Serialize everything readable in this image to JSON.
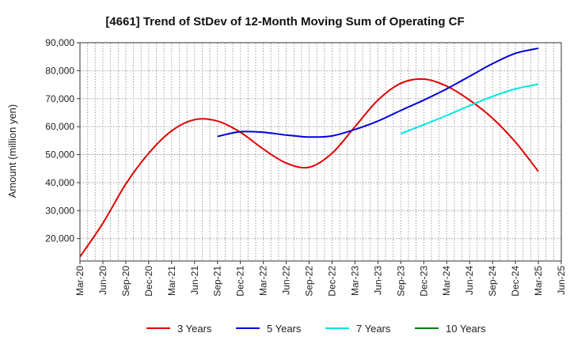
{
  "chart_data": {
    "type": "line",
    "title": "[4661]  Trend of StDev of 12-Month Moving Sum of Operating CF",
    "xlabel": "",
    "ylabel": "Amount (million yen)",
    "ylim": [
      12000,
      90000
    ],
    "yticks": [
      20000,
      30000,
      40000,
      50000,
      60000,
      70000,
      80000,
      90000
    ],
    "ytick_labels": [
      "20,000",
      "30,000",
      "40,000",
      "50,000",
      "60,000",
      "70,000",
      "80,000",
      "90,000"
    ],
    "xlim": [
      0,
      21
    ],
    "xtick_labels": [
      "Mar-20",
      "Jun-20",
      "Sep-20",
      "Dec-20",
      "Mar-21",
      "Jun-21",
      "Sep-21",
      "Dec-21",
      "Mar-22",
      "Jun-22",
      "Sep-22",
      "Dec-22",
      "Mar-23",
      "Jun-23",
      "Sep-23",
      "Dec-23",
      "Mar-24",
      "Jun-24",
      "Sep-24",
      "Dec-24",
      "Mar-25",
      "Jun-25"
    ],
    "grid": true,
    "legend_position": "bottom",
    "series": [
      {
        "name": "3 Years",
        "color": "#e00000",
        "x": [
          0,
          1,
          2,
          3,
          4,
          5,
          6,
          7,
          8,
          9,
          10,
          11,
          12,
          13,
          14,
          15,
          16,
          17,
          18,
          19,
          20
        ],
        "values": [
          13500,
          25500,
          39500,
          50500,
          58500,
          62500,
          62000,
          58000,
          52000,
          47000,
          45500,
          50500,
          60000,
          69500,
          75500,
          77000,
          74500,
          69500,
          63000,
          54500,
          44000
        ]
      },
      {
        "name": "5 Years",
        "color": "#0000dd",
        "x": [
          6,
          7,
          8,
          9,
          10,
          11,
          12,
          13,
          14,
          15,
          16,
          17,
          18,
          19,
          20
        ],
        "values": [
          56500,
          58200,
          58000,
          57000,
          56300,
          56700,
          59000,
          62000,
          65800,
          69500,
          73500,
          78000,
          82500,
          86200,
          88000
        ]
      },
      {
        "name": "7 Years",
        "color": "#00e5e5",
        "x": [
          14,
          15,
          16,
          17,
          18,
          19,
          20
        ],
        "values": [
          57500,
          60700,
          64000,
          67500,
          70800,
          73500,
          75200
        ]
      },
      {
        "name": "10 Years",
        "color": "#008000",
        "x": [],
        "values": []
      }
    ]
  }
}
